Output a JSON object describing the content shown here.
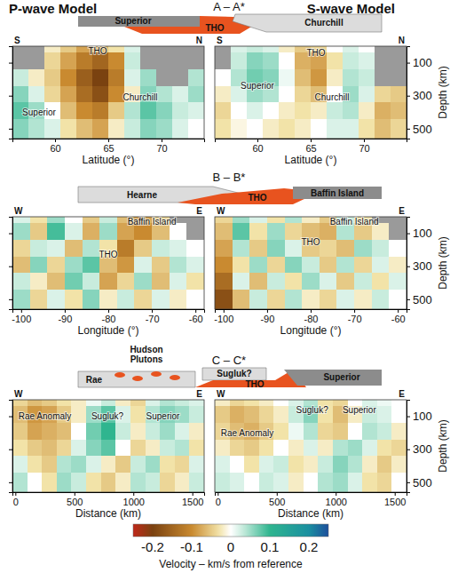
{
  "models": [
    "P-wave Model",
    "S-wave Model"
  ],
  "sections": [
    {
      "title": "A – A*",
      "units": [
        {
          "label": "Superior",
          "color": "#8c8c8c"
        },
        {
          "label": "THO",
          "color": "#e8531f"
        },
        {
          "label": "Churchill",
          "color": "#dcdcdc"
        }
      ]
    },
    {
      "title": "B – B*",
      "units": [
        {
          "label": "Hearne",
          "color": "#dcdcdc"
        },
        {
          "label": "THO",
          "color": "#e8531f"
        },
        {
          "label": "Baffin Island",
          "color": "#8c8c8c"
        }
      ]
    },
    {
      "title": "C – C*",
      "units": [
        {
          "label": "Rae",
          "color": "#dcdcdc"
        },
        {
          "label": "Sugluk?",
          "color": "#dcdcdc"
        },
        {
          "label": "THO",
          "color": "#e8531f"
        },
        {
          "label": "Superior",
          "color": "#8c8c8c"
        }
      ],
      "annotations": [
        {
          "text": "Hudson Plutons",
          "color": "#e8531f"
        }
      ]
    }
  ],
  "colorbar": {
    "title": "Velocity – km/s from reference",
    "range": [
      -0.25,
      0.25
    ],
    "ticks": [
      -0.2,
      -0.1,
      0,
      0.1,
      0.2
    ]
  },
  "chart_data": [
    {
      "type": "heatmap",
      "xlabel": "Latitude (°)",
      "directions": [
        "S",
        "N"
      ],
      "tick_labels": "x",
      "xlim": [
        56,
        74
      ],
      "xticks": [
        60,
        65,
        70
      ],
      "ylim": [
        0,
        560
      ],
      "yticks": [
        100,
        300,
        500
      ],
      "x_edges": [
        56,
        57.5,
        59,
        60.5,
        62,
        63.5,
        65,
        66.5,
        68,
        69.5,
        71,
        72.5,
        74
      ],
      "y_edges": [
        0,
        40,
        140,
        240,
        340,
        440,
        560
      ],
      "cells": [
        [
          null,
          null,
          -0.02,
          -0.05,
          -0.08,
          -0.06,
          -0.03,
          0.02,
          null,
          null,
          null,
          null
        ],
        [
          null,
          null,
          -0.04,
          -0.08,
          -0.12,
          -0.15,
          -0.1,
          0.03,
          null,
          null,
          null,
          null
        ],
        [
          0.03,
          -0.02,
          -0.05,
          -0.1,
          -0.16,
          -0.2,
          -0.12,
          0.02,
          0.05,
          null,
          null,
          0.04
        ],
        [
          0.06,
          0.02,
          -0.04,
          -0.08,
          -0.14,
          -0.18,
          -0.1,
          -0.02,
          0.06,
          0.04,
          0.02,
          0.05
        ],
        [
          0.08,
          0.05,
          0.0,
          -0.06,
          -0.1,
          -0.12,
          -0.05,
          0.04,
          0.08,
          0.06,
          0.03,
          0.02
        ],
        [
          0.06,
          0.04,
          0.02,
          -0.03,
          -0.06,
          -0.08,
          -0.02,
          0.03,
          0.06,
          0.05,
          0.02,
          0.0
        ]
      ],
      "annotations": [
        {
          "text": "THO",
          "x": 64,
          "y": 50
        },
        {
          "text": "Superior",
          "x": 58.5,
          "y": 420
        },
        {
          "text": "Churchill",
          "x": 68,
          "y": 330
        }
      ]
    },
    {
      "type": "heatmap",
      "xlabel": "Latitude (°)",
      "ylabel": "Depth (km)",
      "directions": [
        "S",
        "N"
      ],
      "xlim": [
        56,
        74
      ],
      "xticks": [
        60,
        65,
        70
      ],
      "ylim": [
        0,
        560
      ],
      "yticks": [
        100,
        300,
        500
      ],
      "x_edges": [
        56,
        57.5,
        59,
        60.5,
        62,
        63.5,
        65,
        66.5,
        68,
        69.5,
        71,
        72.5,
        74
      ],
      "y_edges": [
        0,
        40,
        140,
        240,
        340,
        440,
        560
      ],
      "cells": [
        [
          null,
          0.02,
          0.03,
          0.02,
          -0.02,
          -0.05,
          -0.04,
          0.0,
          0.02,
          0.0,
          null,
          null
        ],
        [
          null,
          0.03,
          0.06,
          0.05,
          0.0,
          -0.07,
          -0.08,
          -0.03,
          0.03,
          0.02,
          null,
          null
        ],
        [
          0.0,
          0.04,
          0.07,
          0.06,
          0.01,
          -0.06,
          -0.09,
          -0.02,
          0.04,
          0.03,
          null,
          null
        ],
        [
          -0.02,
          0.02,
          0.05,
          0.04,
          0.0,
          -0.04,
          -0.06,
          0.0,
          0.05,
          0.02,
          -0.04,
          -0.05
        ],
        [
          -0.04,
          0.0,
          0.02,
          0.0,
          -0.02,
          -0.03,
          -0.02,
          0.03,
          0.04,
          -0.02,
          -0.07,
          -0.06
        ],
        [
          -0.03,
          -0.01,
          0.0,
          -0.02,
          -0.03,
          -0.02,
          0.0,
          0.02,
          0.02,
          -0.03,
          -0.06,
          -0.04
        ]
      ],
      "annotations": [
        {
          "text": "THO",
          "x": 65.5,
          "y": 60
        },
        {
          "text": "Superior",
          "x": 60,
          "y": 260
        },
        {
          "text": "Churchill",
          "x": 67,
          "y": 330
        }
      ]
    },
    {
      "type": "heatmap",
      "xlabel": "Longitude (°)",
      "directions": [
        "W",
        "E"
      ],
      "tick_labels": "x",
      "xlim": [
        -102,
        -58
      ],
      "xticks": [
        -100,
        -90,
        -80,
        -70,
        -60
      ],
      "ylim": [
        0,
        560
      ],
      "yticks": [
        100,
        300,
        500
      ],
      "x_edges": [
        -102,
        -98,
        -94,
        -90,
        -86,
        -82,
        -78,
        -74,
        -70,
        -66,
        -62,
        -58
      ],
      "y_edges": [
        0,
        40,
        140,
        240,
        340,
        440,
        560
      ],
      "cells": [
        [
          0.02,
          -0.03,
          0.05,
          0.0,
          -0.05,
          0.03,
          -0.06,
          -0.08,
          -0.04,
          null,
          null
        ],
        [
          0.05,
          -0.05,
          0.09,
          0.02,
          -0.07,
          0.05,
          -0.08,
          -0.1,
          -0.06,
          0.0,
          null
        ],
        [
          -0.04,
          0.03,
          0.02,
          -0.06,
          0.04,
          -0.03,
          -0.12,
          -0.05,
          0.03,
          0.02,
          0.0
        ],
        [
          -0.06,
          0.06,
          -0.04,
          0.05,
          0.08,
          -0.06,
          -0.09,
          0.02,
          -0.05,
          0.04,
          0.02
        ],
        [
          0.03,
          -0.02,
          -0.06,
          0.07,
          0.03,
          -0.08,
          -0.04,
          0.05,
          -0.06,
          0.02,
          -0.03
        ],
        [
          0.05,
          -0.04,
          0.02,
          -0.03,
          0.06,
          -0.02,
          0.03,
          -0.04,
          0.02,
          -0.02,
          0.0
        ]
      ],
      "annotations": [
        {
          "text": "Baffin Island",
          "x": -70,
          "y": 50
        },
        {
          "text": "THO",
          "x": -80,
          "y": 250
        }
      ]
    },
    {
      "type": "heatmap",
      "xlabel": "Longitude (°)",
      "ylabel": "Depth (km)",
      "directions": [
        "W",
        "E"
      ],
      "xlim": [
        -102,
        -58
      ],
      "xticks": [
        -100,
        -90,
        -80,
        -70,
        -60
      ],
      "ylim": [
        0,
        560
      ],
      "yticks": [
        100,
        300,
        500
      ],
      "x_edges": [
        -102,
        -98,
        -94,
        -90,
        -86,
        -82,
        -78,
        -74,
        -70,
        -66,
        -62,
        -58
      ],
      "y_edges": [
        0,
        40,
        140,
        240,
        340,
        440,
        560
      ],
      "cells": [
        [
          -0.04,
          0.05,
          0.02,
          -0.03,
          0.04,
          -0.02,
          -0.05,
          0.03,
          -0.03,
          null,
          null
        ],
        [
          -0.06,
          0.08,
          -0.03,
          0.05,
          -0.04,
          -0.06,
          -0.07,
          0.04,
          -0.05,
          -0.02,
          null
        ],
        [
          -0.08,
          0.04,
          -0.05,
          0.06,
          0.02,
          -0.05,
          -0.04,
          -0.06,
          0.05,
          0.03,
          0.0
        ],
        [
          -0.1,
          -0.03,
          0.05,
          -0.04,
          0.06,
          0.03,
          -0.05,
          0.04,
          -0.04,
          0.02,
          -0.02
        ],
        [
          -0.14,
          0.02,
          -0.06,
          0.03,
          -0.03,
          0.05,
          0.02,
          -0.05,
          0.03,
          -0.03,
          0.02
        ],
        [
          -0.18,
          -0.06,
          0.03,
          -0.04,
          0.04,
          -0.02,
          -0.04,
          0.02,
          -0.02,
          0.03,
          0.0
        ]
      ],
      "annotations": [
        {
          "text": "THO",
          "x": -80,
          "y": 170
        },
        {
          "text": "Baffin Island",
          "x": -70,
          "y": 50
        }
      ]
    },
    {
      "type": "heatmap",
      "xlabel": "Distance (km)",
      "directions": [
        "W",
        "E"
      ],
      "tick_labels": "x",
      "xlim": [
        -25,
        1600
      ],
      "xticks": [
        0,
        500,
        1000,
        1500
      ],
      "ylim": [
        0,
        560
      ],
      "yticks": [
        100,
        300,
        500
      ],
      "x_edges": [
        -25,
        100,
        225,
        350,
        475,
        600,
        725,
        850,
        975,
        1100,
        1225,
        1350,
        1475,
        1600
      ],
      "y_edges": [
        0,
        40,
        140,
        240,
        340,
        440,
        560
      ],
      "cells": [
        [
          -0.04,
          -0.06,
          -0.05,
          -0.03,
          -0.02,
          0.01,
          0.03,
          -0.02,
          -0.04,
          0.02,
          0.04,
          0.03,
          0.02
        ],
        [
          -0.06,
          -0.09,
          -0.08,
          -0.05,
          -0.02,
          0.05,
          0.08,
          0.02,
          -0.03,
          0.04,
          0.06,
          0.05,
          0.03
        ],
        [
          -0.05,
          -0.08,
          -0.07,
          -0.06,
          0.0,
          0.07,
          0.1,
          0.03,
          -0.02,
          0.03,
          0.05,
          0.02,
          -0.02
        ],
        [
          -0.03,
          -0.05,
          -0.06,
          -0.04,
          0.02,
          0.06,
          0.08,
          0.0,
          -0.04,
          -0.02,
          0.03,
          0.04,
          -0.03
        ],
        [
          0.02,
          -0.03,
          -0.05,
          0.04,
          0.05,
          0.02,
          -0.02,
          -0.05,
          0.03,
          0.05,
          -0.03,
          -0.04,
          0.02
        ],
        [
          0.04,
          0.0,
          -0.03,
          0.05,
          0.03,
          -0.03,
          -0.05,
          -0.02,
          0.04,
          0.03,
          -0.04,
          -0.02,
          0.03
        ]
      ],
      "annotations": [
        {
          "text": "Rae Anomaly",
          "x": 250,
          "y": 120
        },
        {
          "text": "Sugluk?",
          "x": 780,
          "y": 120
        },
        {
          "text": "Superior",
          "x": 1250,
          "y": 120
        }
      ]
    },
    {
      "type": "heatmap",
      "xlabel": "Distance (km)",
      "ylabel": "Depth (km)",
      "directions": [
        "W",
        "E"
      ],
      "xlim": [
        -25,
        1600
      ],
      "xticks": [
        0,
        500,
        1000,
        1500
      ],
      "ylim": [
        0,
        560
      ],
      "yticks": [
        100,
        300,
        500
      ],
      "x_edges": [
        -25,
        100,
        225,
        350,
        475,
        600,
        725,
        850,
        975,
        1100,
        1225,
        1350,
        1475,
        1600
      ],
      "y_edges": [
        0,
        40,
        140,
        240,
        340,
        440,
        560
      ],
      "cells": [
        [
          -0.02,
          -0.04,
          -0.03,
          -0.02,
          0.0,
          0.02,
          0.04,
          -0.03,
          -0.04,
          0.0,
          0.02,
          0.01,
          0.0
        ],
        [
          -0.05,
          -0.07,
          -0.06,
          -0.04,
          -0.02,
          0.03,
          0.06,
          -0.03,
          -0.06,
          -0.02,
          0.03,
          0.02,
          0.0
        ],
        [
          -0.04,
          -0.06,
          -0.07,
          -0.05,
          -0.03,
          0.01,
          0.04,
          -0.04,
          -0.05,
          0.0,
          0.04,
          0.03,
          -0.02
        ],
        [
          -0.02,
          -0.04,
          -0.05,
          -0.03,
          0.0,
          -0.02,
          0.02,
          -0.02,
          0.04,
          0.05,
          0.02,
          -0.03,
          -0.04
        ],
        [
          0.02,
          0.0,
          -0.03,
          0.02,
          0.03,
          -0.03,
          -0.02,
          0.03,
          0.06,
          0.04,
          -0.02,
          -0.05,
          -0.02
        ],
        [
          0.03,
          0.02,
          0.0,
          0.03,
          0.02,
          -0.02,
          0.0,
          0.04,
          0.05,
          0.02,
          -0.03,
          -0.04,
          0.0
        ]
      ],
      "annotations": [
        {
          "text": "Rae Anomaly",
          "x": 250,
          "y": 220
        },
        {
          "text": "Sugluk?",
          "x": 800,
          "y": 80
        },
        {
          "text": "Superior",
          "x": 1200,
          "y": 80
        }
      ]
    }
  ]
}
